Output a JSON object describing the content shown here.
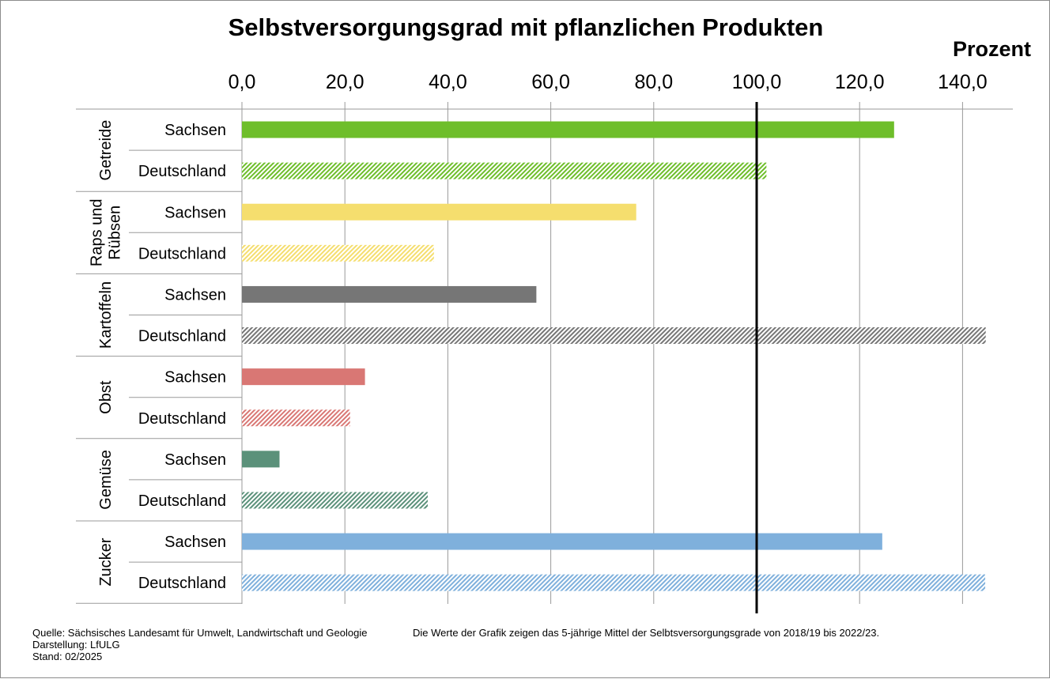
{
  "chart_data": {
    "type": "bar",
    "orientation": "horizontal",
    "title": "Selbstversorgungsgrad mit pflanzlichen Produkten",
    "unit_label": "Prozent",
    "xlim": [
      0,
      150
    ],
    "ticks": [
      "0,0",
      "20,0",
      "40,0",
      "60,0",
      "80,0",
      "100,0",
      "120,0",
      "140,0"
    ],
    "tick_values": [
      0,
      20,
      40,
      60,
      80,
      100,
      120,
      140
    ],
    "reference_line": 100,
    "grid": true,
    "groups": [
      {
        "name": "Getreide",
        "name_lines": [
          "Getreide"
        ],
        "color": "#6ebe2a",
        "bars": [
          {
            "label": "Sachsen",
            "value": 126.7,
            "pattern": "solid"
          },
          {
            "label": "Deutschland",
            "value": 101.9,
            "pattern": "hatched"
          }
        ]
      },
      {
        "name": "Raps und Rübsen",
        "name_lines": [
          "Raps und",
          "Rübsen"
        ],
        "color": "#f5de6e",
        "bars": [
          {
            "label": "Sachsen",
            "value": 76.6,
            "pattern": "solid"
          },
          {
            "label": "Deutschland",
            "value": 37.3,
            "pattern": "hatched"
          }
        ]
      },
      {
        "name": "Kartoffeln",
        "name_lines": [
          "Kartoffeln"
        ],
        "color": "#767676",
        "bars": [
          {
            "label": "Sachsen",
            "value": 57.2,
            "pattern": "solid"
          },
          {
            "label": "Deutschland",
            "value": 144.5,
            "pattern": "hatched"
          }
        ]
      },
      {
        "name": "Obst",
        "name_lines": [
          "Obst"
        ],
        "color": "#d97774",
        "bars": [
          {
            "label": "Sachsen",
            "value": 23.9,
            "pattern": "solid"
          },
          {
            "label": "Deutschland",
            "value": 21.0,
            "pattern": "hatched"
          }
        ]
      },
      {
        "name": "Gemüse",
        "name_lines": [
          "Gemüse"
        ],
        "color": "#5b917a",
        "bars": [
          {
            "label": "Sachsen",
            "value": 7.3,
            "pattern": "solid"
          },
          {
            "label": "Deutschland",
            "value": 36.1,
            "pattern": "hatched"
          }
        ]
      },
      {
        "name": "Zucker",
        "name_lines": [
          "Zucker"
        ],
        "color": "#7fb0dc",
        "bars": [
          {
            "label": "Sachsen",
            "value": 124.4,
            "pattern": "solid"
          },
          {
            "label": "Deutschland",
            "value": 144.4,
            "pattern": "hatched"
          }
        ]
      }
    ]
  },
  "footer": {
    "source": "Quelle: Sächsisches Landesamt für Umwelt, Landwirtschaft und Geologie",
    "author": "Darstellung: LfULG",
    "date": "Stand: 02/2025",
    "note": "Die Werte der Grafik zeigen das 5-jährige Mittel der Selbtsversorgungsgrade  von 2018/19 bis 2022/23."
  }
}
